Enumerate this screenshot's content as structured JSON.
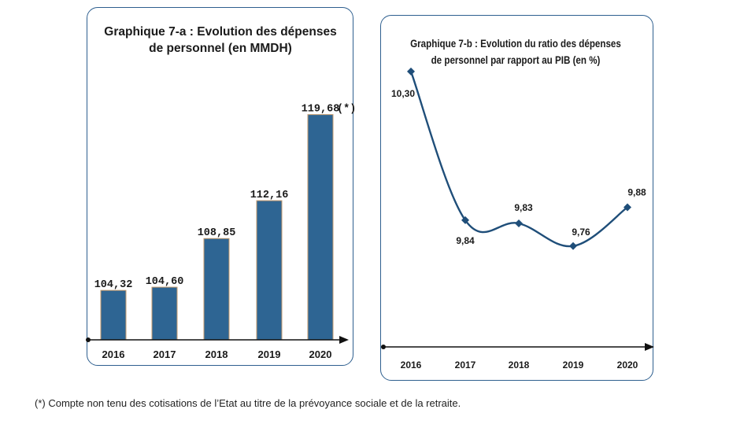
{
  "colors": {
    "bar_fill": "#2e6593",
    "bar_edge": "#c49a6c",
    "line": "#1f4e79",
    "panel_border": "#2e5f8f",
    "axis": "#111111"
  },
  "chart_data": [
    {
      "type": "bar",
      "title": "Graphique 7-a : Evolution des dépenses de personnel  (en MMDH)",
      "categories": [
        "2016",
        "2017",
        "2018",
        "2019",
        "2020"
      ],
      "values": [
        104.32,
        104.6,
        108.85,
        112.16,
        119.68
      ],
      "data_labels": [
        "104,32",
        "104,60",
        "108,85",
        "112,16",
        "119,68"
      ],
      "annotation": "(*)",
      "xlabel": "",
      "ylabel": "",
      "grid": false,
      "legend": "none"
    },
    {
      "type": "line",
      "title": "Graphique 7-b : Evolution du ratio des dépenses de personnel  par rapport au PIB (en %)",
      "categories": [
        "2016",
        "2017",
        "2018",
        "2019",
        "2020"
      ],
      "values": [
        10.3,
        9.84,
        9.83,
        9.76,
        9.88
      ],
      "data_labels": [
        "10,30",
        "9,84",
        "9,83",
        "9,76",
        "9,88"
      ],
      "xlabel": "",
      "ylabel": "",
      "grid": false,
      "legend": "none",
      "smoothed": true
    }
  ],
  "footnote": "(*) Compte non tenu des cotisations de l’Etat au titre de la prévoyance sociale  et de la retraite."
}
